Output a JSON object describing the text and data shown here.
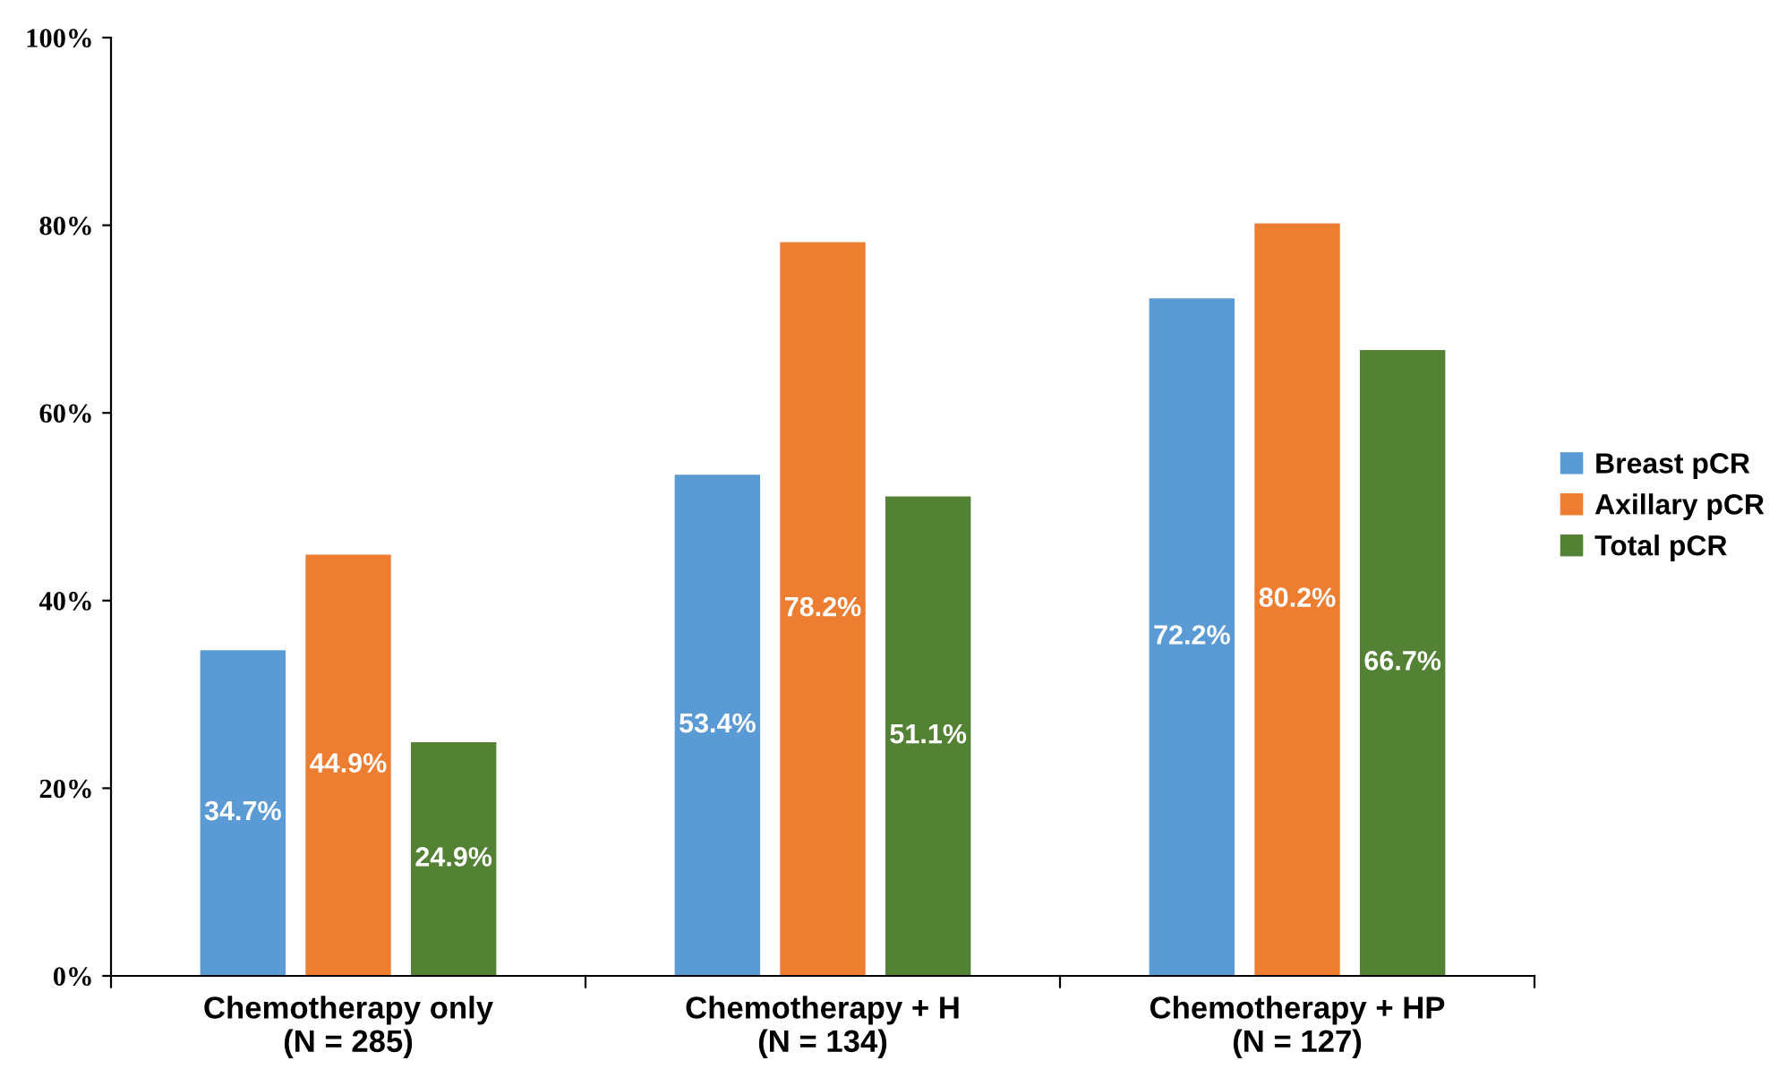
{
  "chart_data": {
    "type": "bar",
    "categories": [
      "Chemotherapy only\n(N = 285)",
      "Chemotherapy + H\n(N = 134)",
      "Chemotherapy + HP\n(N = 127)"
    ],
    "series": [
      {
        "name": "Breast pCR",
        "color": "#5b9bd5",
        "values": [
          34.7,
          53.4,
          72.2
        ],
        "value_labels": [
          "34.7%",
          "53.4%",
          "72.2%"
        ]
      },
      {
        "name": "Axillary pCR",
        "color": "#ed7d31",
        "values": [
          44.9,
          78.2,
          80.2
        ],
        "value_labels": [
          "44.9%",
          "78.2%",
          "80.2%"
        ]
      },
      {
        "name": "Total pCR",
        "color": "#548235",
        "values": [
          24.9,
          51.1,
          66.7
        ],
        "value_labels": [
          "24.9%",
          "51.1%",
          "66.7%"
        ]
      }
    ],
    "ylim": [
      0,
      100
    ],
    "yticks": [
      {
        "value": 0,
        "label": "0%"
      },
      {
        "value": 20,
        "label": "20%"
      },
      {
        "value": 40,
        "label": "40%"
      },
      {
        "value": 60,
        "label": "60%"
      },
      {
        "value": 80,
        "label": "80%"
      },
      {
        "value": 100,
        "label": "100%"
      }
    ],
    "grid": false,
    "legend": "right"
  }
}
